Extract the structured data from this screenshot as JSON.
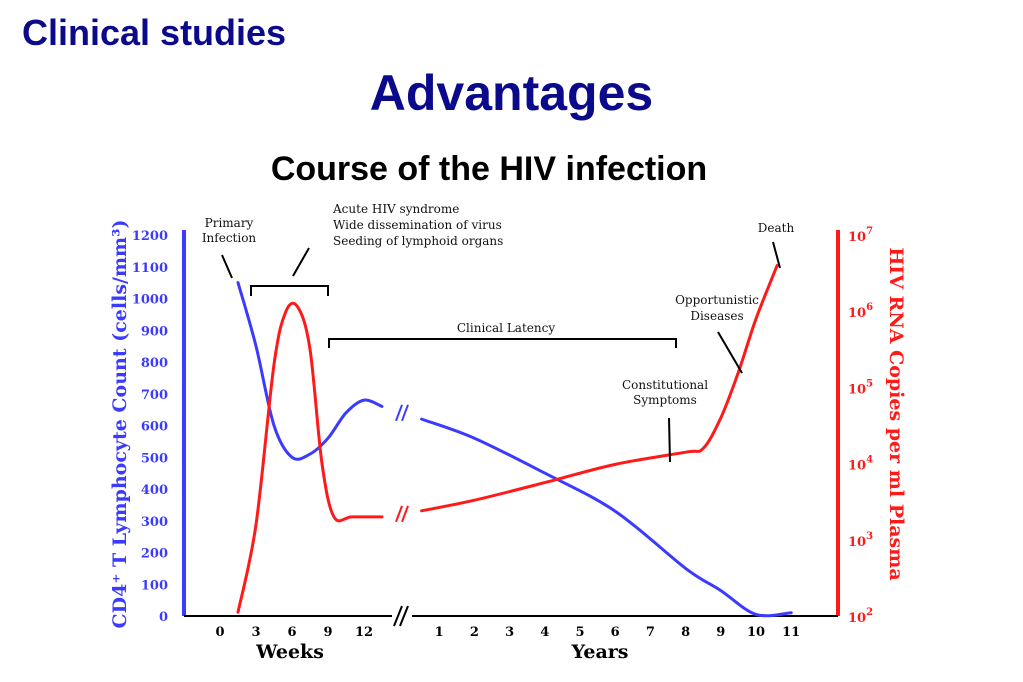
{
  "slide": {
    "header": "Clinical studies",
    "title": "Advantages"
  },
  "chart_data": {
    "type": "line",
    "title": "Course of the HIV infection",
    "xlabel_left": "Weeks",
    "xlabel_right": "Years",
    "ylabel_left": "CD4⁺ T Lymphocyte Count (cells/mm³)",
    "ylabel_right": "HIV RNA Copies per ml Plasma",
    "colors": {
      "cd4": "#3b3bff",
      "rna": "#ff1a1a",
      "axis": "#000000"
    },
    "x_ticks_weeks": [
      "0",
      "3",
      "6",
      "9",
      "12"
    ],
    "x_ticks_years": [
      "1",
      "2",
      "3",
      "4",
      "5",
      "6",
      "7",
      "8",
      "9",
      "10",
      "11"
    ],
    "y_left_ticks": [
      "0",
      "100",
      "200",
      "300",
      "400",
      "500",
      "600",
      "700",
      "800",
      "900",
      "1000",
      "1100",
      "1200"
    ],
    "y_left_lim": [
      0,
      1200
    ],
    "y_right_ticks": [
      {
        "base": "10",
        "exp": "2",
        "value": 2
      },
      {
        "base": "10",
        "exp": "3",
        "value": 3
      },
      {
        "base": "10",
        "exp": "4",
        "value": 4
      },
      {
        "base": "10",
        "exp": "5",
        "value": 5
      },
      {
        "base": "10",
        "exp": "6",
        "value": 6
      },
      {
        "base": "10",
        "exp": "7",
        "value": 7
      }
    ],
    "y_right_scale": "log10",
    "series": [
      {
        "name": "CD4",
        "axis": "left",
        "points": [
          [
            "w",
            1.5,
            1050
          ],
          [
            "w",
            3,
            850
          ],
          [
            "w",
            4.5,
            600
          ],
          [
            "w",
            6,
            500
          ],
          [
            "w",
            7.5,
            510
          ],
          [
            "w",
            9,
            560
          ],
          [
            "w",
            10.5,
            640
          ],
          [
            "w",
            12,
            680
          ],
          [
            "w",
            13.5,
            660
          ],
          [
            "y",
            0.5,
            620
          ],
          [
            "y",
            2,
            560
          ],
          [
            "y",
            4,
            450
          ],
          [
            "y",
            6,
            330
          ],
          [
            "y",
            8,
            150
          ],
          [
            "y",
            9,
            80
          ],
          [
            "y",
            10,
            5
          ],
          [
            "y",
            11,
            10
          ]
        ]
      },
      {
        "name": "HIV RNA",
        "axis": "right",
        "points": [
          [
            "w",
            1.5,
            2.05
          ],
          [
            "w",
            3,
            3.2
          ],
          [
            "w",
            4.5,
            5.3
          ],
          [
            "w",
            5.5,
            6.0
          ],
          [
            "w",
            6.5,
            6.05
          ],
          [
            "w",
            7.5,
            5.5
          ],
          [
            "w",
            8.5,
            4.0
          ],
          [
            "w",
            9.5,
            3.3
          ],
          [
            "w",
            11,
            3.3
          ],
          [
            "w",
            13.5,
            3.3
          ],
          [
            "y",
            0.5,
            3.38
          ],
          [
            "y",
            2,
            3.52
          ],
          [
            "y",
            4,
            3.75
          ],
          [
            "y",
            6,
            3.99
          ],
          [
            "y",
            8,
            4.15
          ],
          [
            "y",
            8.5,
            4.2
          ],
          [
            "y",
            9,
            4.6
          ],
          [
            "y",
            9.5,
            5.2
          ],
          [
            "y",
            10,
            5.9
          ],
          [
            "y",
            10.6,
            6.6
          ]
        ]
      }
    ],
    "annotations": {
      "primary": [
        "Primary",
        "Infection"
      ],
      "acute": [
        "Acute HIV syndrome",
        "Wide dissemination of virus",
        "Seeding of lymphoid organs"
      ],
      "latency": "Clinical Latency",
      "constitutional": [
        "Constitutional",
        "Symptoms"
      ],
      "opportunistic": [
        "Opportunistic",
        "Diseases"
      ],
      "death": "Death"
    }
  }
}
